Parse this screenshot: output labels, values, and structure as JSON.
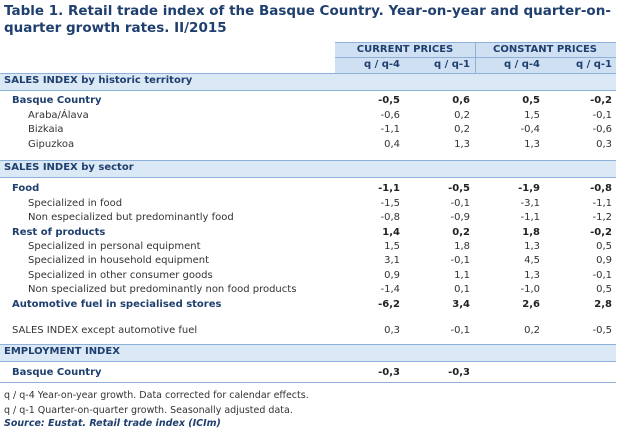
{
  "title": "Table 1. Retail trade index of the Basque Country. Year-on-year and quarter-on-quarter growth rates. II/2015",
  "header": {
    "groups": [
      "CURRENT PRICES",
      "CONSTANT PRICES"
    ],
    "columns": [
      "q / q-4",
      "q / q-1",
      "q / q-4",
      "q / q-1"
    ]
  },
  "sections": [
    {
      "title": "SALES INDEX by historic territory",
      "rows": [
        {
          "label": "Basque Country",
          "values": [
            "-0,5",
            "0,6",
            "0,5",
            "-0,2"
          ]
        },
        {
          "label": "Araba/Álava",
          "values": [
            "-0,6",
            "0,2",
            "1,5",
            "-0,1"
          ]
        },
        {
          "label": "Bizkaia",
          "values": [
            "-1,1",
            "0,2",
            "-0,4",
            "-0,6"
          ]
        },
        {
          "label": "Gipuzkoa",
          "values": [
            "0,4",
            "1,3",
            "1,3",
            "0,3"
          ]
        }
      ]
    },
    {
      "title": "SALES INDEX by sector",
      "rows": [
        {
          "label": "Food",
          "values": [
            "-1,1",
            "-0,5",
            "-1,9",
            "-0,8"
          ]
        },
        {
          "label": "Specialized in food",
          "values": [
            "-1,5",
            "-0,1",
            "-3,1",
            "-1,1"
          ]
        },
        {
          "label": "Non especialized but predominantly food",
          "values": [
            "-0,8",
            "-0,9",
            "-1,1",
            "-1,2"
          ]
        },
        {
          "label": "Rest of products",
          "values": [
            "1,4",
            "0,2",
            "1,8",
            "-0,2"
          ]
        },
        {
          "label": "Specialized in personal equipment",
          "values": [
            "1,5",
            "1,8",
            "1,3",
            "0,5"
          ]
        },
        {
          "label": "Specialized in household equipment",
          "values": [
            "3,1",
            "-0,1",
            "4,5",
            "0,9"
          ]
        },
        {
          "label": "Specialized in other consumer goods",
          "values": [
            "0,9",
            "1,1",
            "1,3",
            "-0,1"
          ]
        },
        {
          "label": "Non specialized but predominantly non food products",
          "values": [
            "-1,4",
            "0,1",
            "-1,0",
            "0,5"
          ]
        },
        {
          "label": "Automotive fuel in specialised stores",
          "values": [
            "-6,2",
            "3,4",
            "2,6",
            "2,8"
          ]
        },
        {
          "label": "SALES INDEX except automotive fuel",
          "values": [
            "0,3",
            "-0,1",
            "0,2",
            "-0,5"
          ]
        }
      ]
    },
    {
      "title": "EMPLOYMENT INDEX",
      "rows": [
        {
          "label": "Basque Country",
          "values": [
            "-0,3",
            "-0,3"
          ]
        }
      ]
    }
  ],
  "notes": [
    "q / q-4 Year-on-year growth. Data corrected for calendar effects.",
    "q / q-1 Quarter-on-quarter growth. Seasonally adjusted data."
  ],
  "source": "Source: Eustat. Retail trade index (ICIm)"
}
